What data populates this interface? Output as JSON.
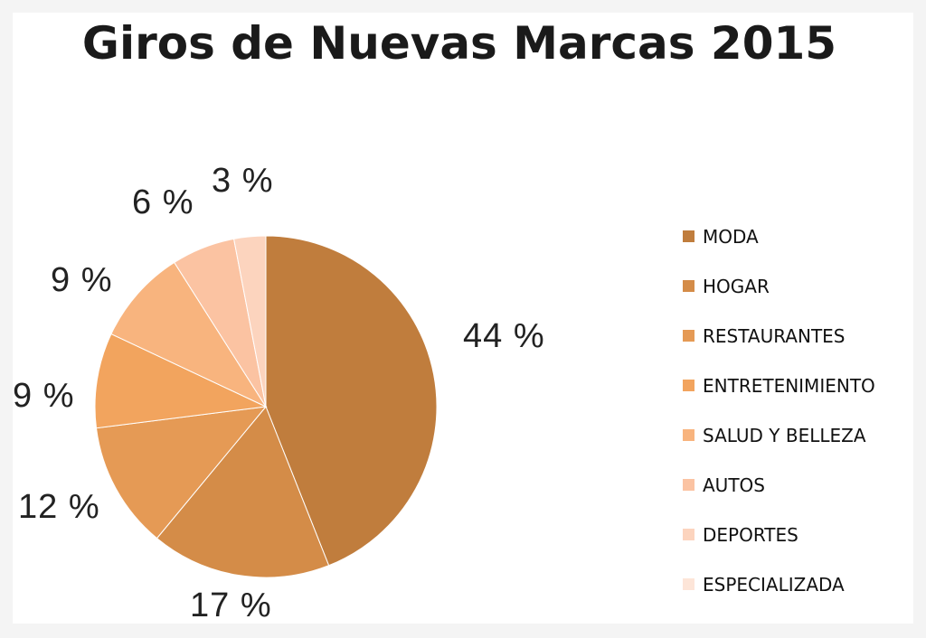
{
  "chart_data": {
    "type": "pie",
    "title": "Giros de Nuevas Marcas 2015",
    "slices": [
      {
        "label": "MODA",
        "value": 44,
        "display": "44 %",
        "color": "#c07d3d"
      },
      {
        "label": "HOGAR",
        "value": 17,
        "display": "17 %",
        "color": "#d48c48"
      },
      {
        "label": "RESTAURANTES",
        "value": 12,
        "display": "12 %",
        "color": "#e59a55"
      },
      {
        "label": "ENTRETENIMIENTO",
        "value": 9,
        "display": "9 %",
        "color": "#f2a45e"
      },
      {
        "label": "SALUD Y BELLEZA",
        "value": 9,
        "display": "9 %",
        "color": "#f8b47e"
      },
      {
        "label": "AUTOS",
        "value": 6,
        "display": "6 %",
        "color": "#fbc3a2"
      },
      {
        "label": "DEPORTES",
        "value": 3,
        "display": "3 %",
        "color": "#fcd4be"
      },
      {
        "label": "ESPECIALIZADA",
        "value": 0,
        "display": "",
        "color": "#fde5d8"
      }
    ],
    "legend_position": "right"
  }
}
